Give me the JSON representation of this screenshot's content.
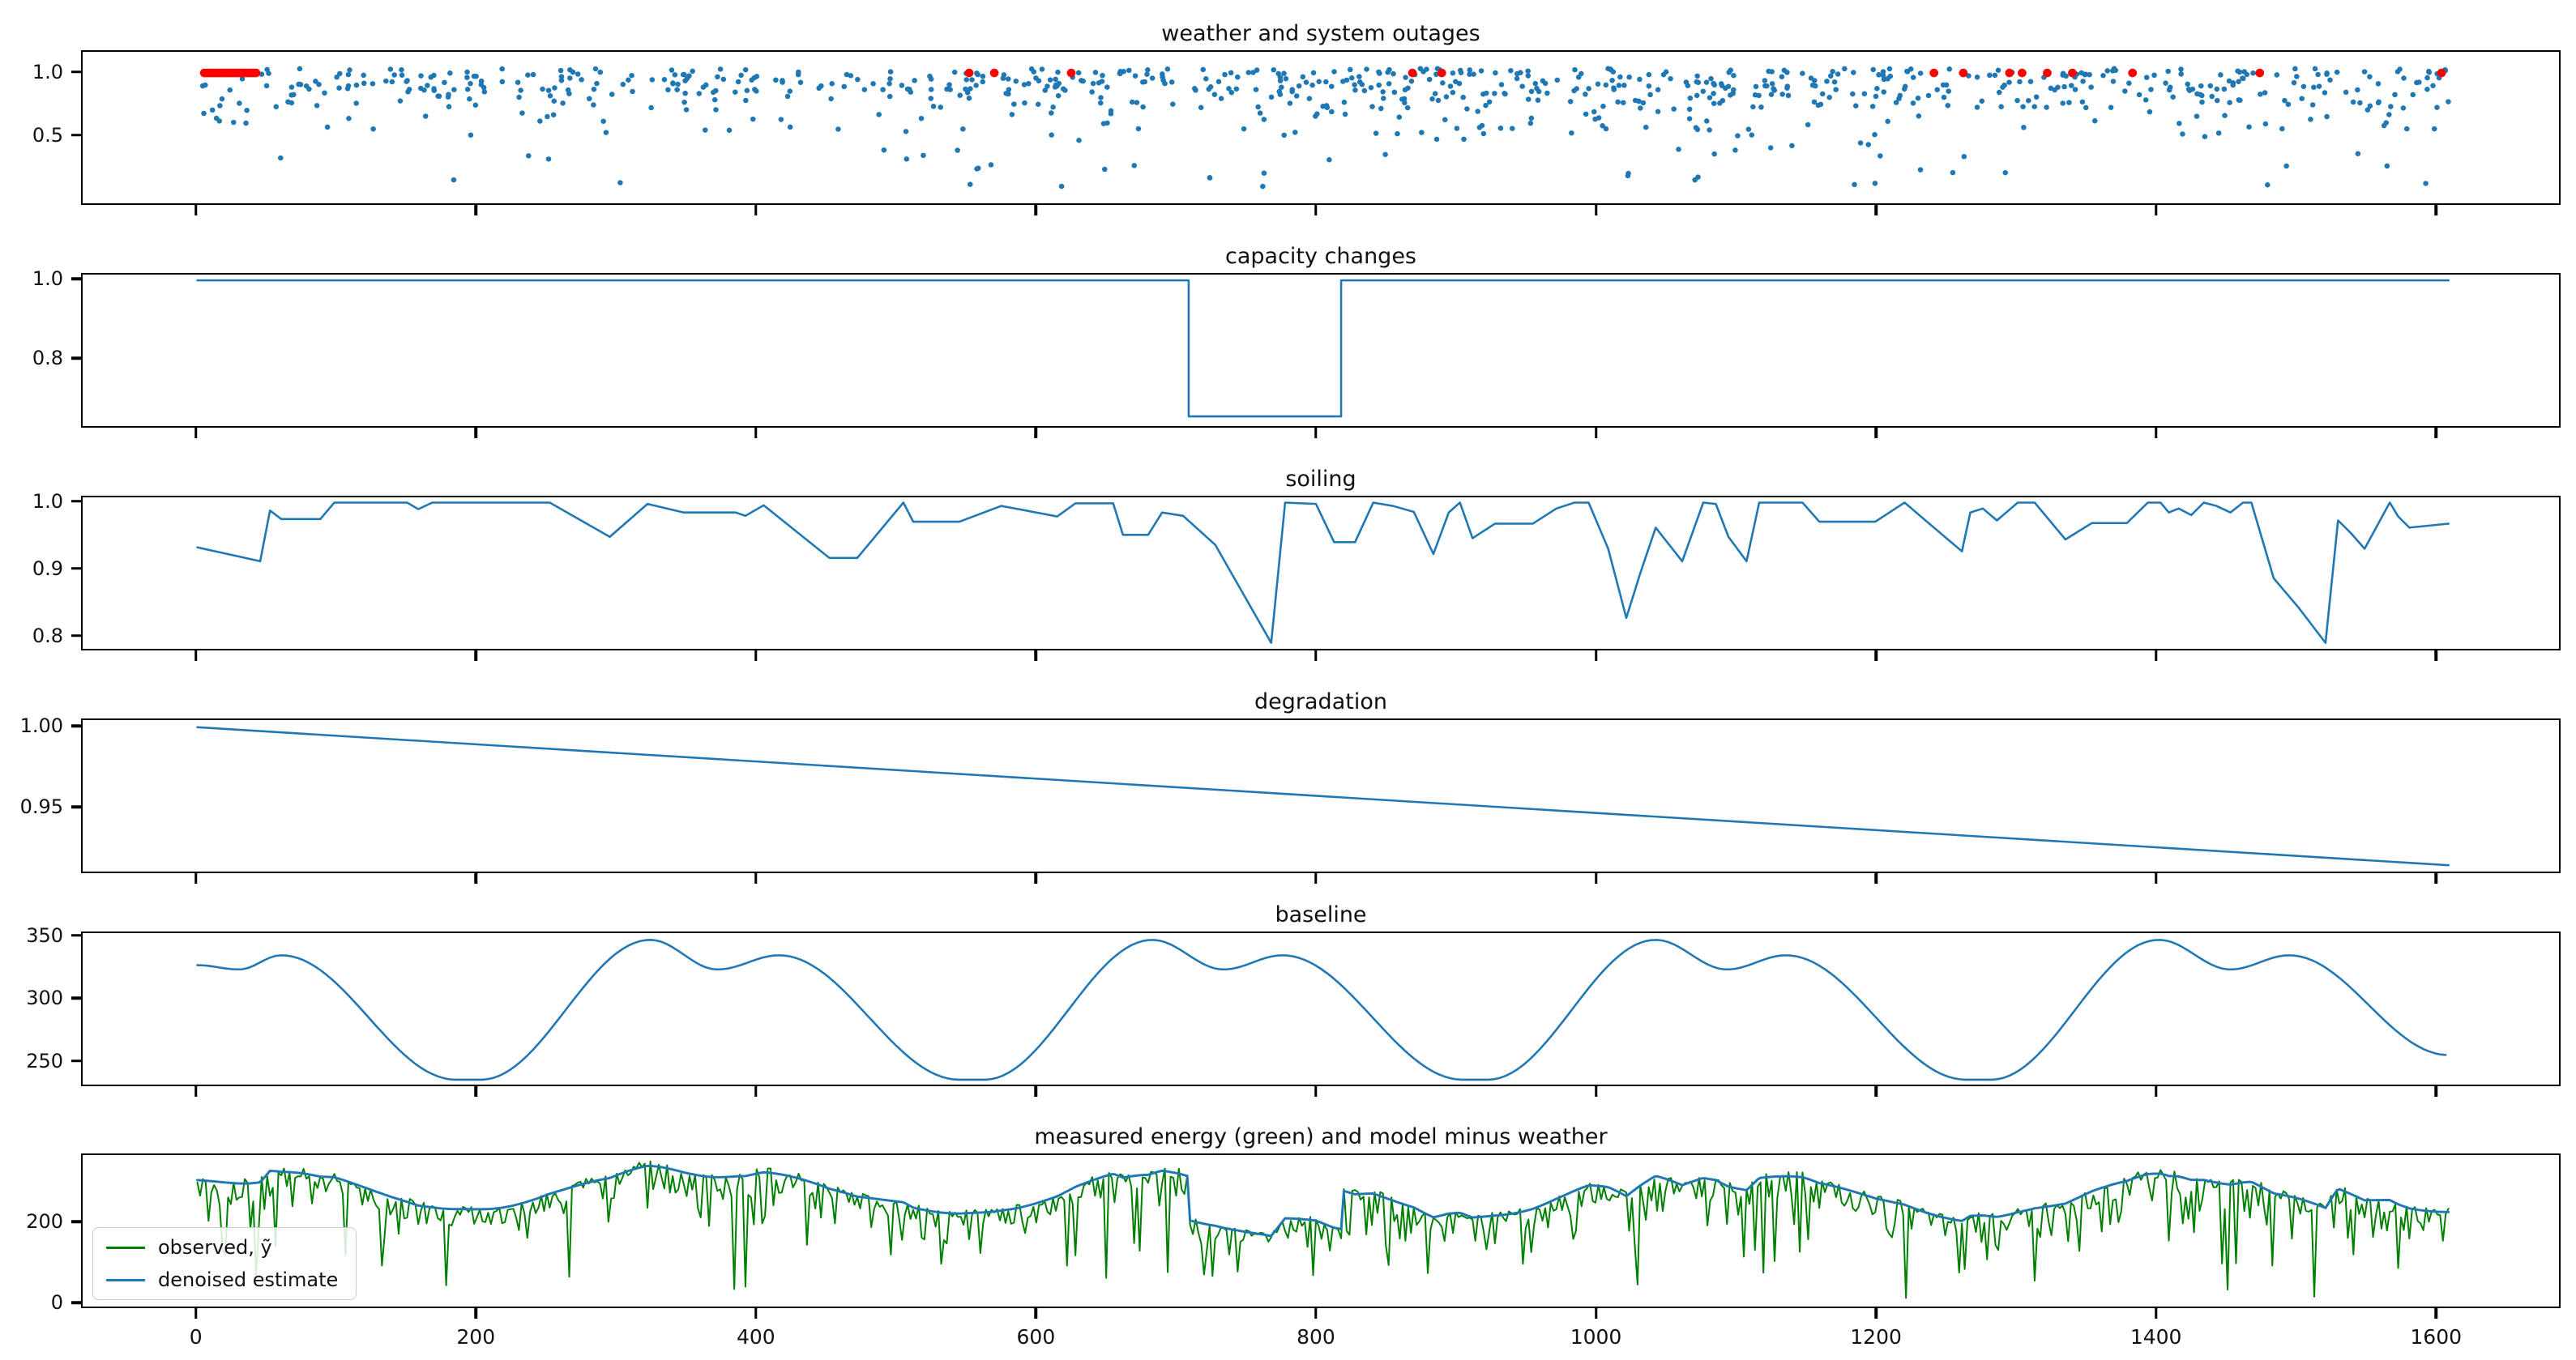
{
  "figure": {
    "background": "#ffffff",
    "colors": {
      "blue": "#1f77b4",
      "green": "#008000",
      "red": "#ff0000",
      "axis": "#000000",
      "legend_border": "#cccccc"
    }
  },
  "axes_shared": {
    "xlim": [
      -82,
      1689
    ],
    "xticks": [
      0,
      200,
      400,
      600,
      800,
      1000,
      1200,
      1400,
      1600
    ],
    "xtick_labels": [
      "0",
      "200",
      "400",
      "600",
      "800",
      "1000",
      "1200",
      "1400",
      "1600"
    ]
  },
  "chart_data": [
    {
      "id": "outages",
      "type": "scatter",
      "title": "weather and system outages",
      "ylim": [
        -0.05,
        1.17
      ],
      "yticks": [
        {
          "v": 1.0,
          "label": "1.0"
        },
        {
          "v": 0.5,
          "label": "0.5"
        }
      ],
      "blue_points_summary": {
        "description": "daily weather factor, ~830 points, dense band 0.75-1.03 with tail down to ~0.08",
        "seed": 11,
        "count_left": 14,
        "left_x_range": [
          0,
          45
        ],
        "count_main": 815,
        "main_x_range": [
          45,
          1610
        ]
      },
      "red_points": {
        "description": "system outages plotted at y=1.0",
        "y": 1.0,
        "cluster": {
          "x_start": 5,
          "x_end": 42,
          "count": 27
        },
        "isolated_x": [
          552,
          570,
          625,
          869,
          890,
          1242,
          1263,
          1296,
          1305,
          1323,
          1341,
          1384,
          1475,
          1605
        ]
      }
    },
    {
      "id": "capacity",
      "type": "line",
      "title": "capacity changes",
      "ylim": [
        0.625,
        1.015
      ],
      "yticks": [
        {
          "v": 1.0,
          "label": "1.0"
        },
        {
          "v": 0.8,
          "label": "0.8"
        }
      ],
      "interp": "linear",
      "points": [
        [
          0,
          1.0
        ],
        [
          709,
          1.0
        ],
        [
          709,
          0.65
        ],
        [
          818,
          0.65
        ],
        [
          818,
          1.0
        ],
        [
          1610,
          1.0
        ]
      ]
    },
    {
      "id": "soiling",
      "type": "line",
      "title": "soiling",
      "ylim": [
        0.778,
        1.008
      ],
      "yticks": [
        {
          "v": 1.0,
          "label": "1.0"
        },
        {
          "v": 0.9,
          "label": "0.9"
        },
        {
          "v": 0.8,
          "label": "0.8"
        }
      ],
      "interp": "linear",
      "points": [
        [
          0,
          0.932
        ],
        [
          45,
          0.911
        ],
        [
          52,
          0.988
        ],
        [
          60,
          0.975
        ],
        [
          88,
          0.975
        ],
        [
          98,
          1.0
        ],
        [
          150,
          1.0
        ],
        [
          158,
          0.99
        ],
        [
          168,
          1.0
        ],
        [
          252,
          1.0
        ],
        [
          295,
          0.948
        ],
        [
          322,
          0.998
        ],
        [
          348,
          0.985
        ],
        [
          385,
          0.985
        ],
        [
          392,
          0.98
        ],
        [
          405,
          0.996
        ],
        [
          452,
          0.916
        ],
        [
          472,
          0.916
        ],
        [
          505,
          1.0
        ],
        [
          512,
          0.971
        ],
        [
          545,
          0.971
        ],
        [
          575,
          0.995
        ],
        [
          615,
          0.979
        ],
        [
          628,
          0.999
        ],
        [
          655,
          0.999
        ],
        [
          662,
          0.951
        ],
        [
          680,
          0.951
        ],
        [
          690,
          0.985
        ],
        [
          705,
          0.98
        ],
        [
          728,
          0.936
        ],
        [
          768,
          0.787
        ],
        [
          778,
          1.0
        ],
        [
          800,
          0.998
        ],
        [
          813,
          0.94
        ],
        [
          828,
          0.94
        ],
        [
          841,
          1.0
        ],
        [
          855,
          0.995
        ],
        [
          870,
          0.986
        ],
        [
          884,
          0.922
        ],
        [
          895,
          0.985
        ],
        [
          903,
          1.0
        ],
        [
          912,
          0.946
        ],
        [
          928,
          0.968
        ],
        [
          955,
          0.968
        ],
        [
          972,
          0.991
        ],
        [
          985,
          1.0
        ],
        [
          995,
          1.0
        ],
        [
          1009,
          0.93
        ],
        [
          1022,
          0.825
        ],
        [
          1032,
          0.893
        ],
        [
          1043,
          0.962
        ],
        [
          1062,
          0.911
        ],
        [
          1077,
          1.0
        ],
        [
          1086,
          0.998
        ],
        [
          1095,
          0.948
        ],
        [
          1108,
          0.911
        ],
        [
          1117,
          1.0
        ],
        [
          1148,
          1.0
        ],
        [
          1160,
          0.971
        ],
        [
          1200,
          0.971
        ],
        [
          1221,
          1.0
        ],
        [
          1237,
          0.971
        ],
        [
          1262,
          0.926
        ],
        [
          1268,
          0.985
        ],
        [
          1277,
          0.991
        ],
        [
          1287,
          0.973
        ],
        [
          1302,
          1.0
        ],
        [
          1314,
          1.0
        ],
        [
          1336,
          0.944
        ],
        [
          1355,
          0.969
        ],
        [
          1380,
          0.969
        ],
        [
          1395,
          1.0
        ],
        [
          1404,
          1.0
        ],
        [
          1410,
          0.985
        ],
        [
          1417,
          0.991
        ],
        [
          1426,
          0.981
        ],
        [
          1435,
          1.0
        ],
        [
          1444,
          0.995
        ],
        [
          1454,
          0.985
        ],
        [
          1463,
          1.0
        ],
        [
          1469,
          1.0
        ],
        [
          1485,
          0.885
        ],
        [
          1503,
          0.84
        ],
        [
          1522,
          0.787
        ],
        [
          1531,
          0.973
        ],
        [
          1540,
          0.954
        ],
        [
          1550,
          0.93
        ],
        [
          1568,
          1.0
        ],
        [
          1574,
          0.979
        ],
        [
          1582,
          0.962
        ],
        [
          1610,
          0.968
        ]
      ]
    },
    {
      "id": "degradation",
      "type": "line",
      "title": "degradation",
      "ylim": [
        0.909,
        1.0045
      ],
      "yticks": [
        {
          "v": 1.0,
          "label": "1.00"
        },
        {
          "v": 0.95,
          "label": "0.95"
        }
      ],
      "interp": "linear",
      "points": [
        [
          0,
          1.0
        ],
        [
          1610,
          0.913
        ]
      ]
    },
    {
      "id": "baseline",
      "type": "line",
      "title": "baseline",
      "ylim": [
        230,
        353
      ],
      "yticks": [
        {
          "v": 350,
          "label": "350"
        },
        {
          "v": 300,
          "label": "300"
        },
        {
          "v": 250,
          "label": "250"
        }
      ],
      "interp": "cosine",
      "points": [
        [
          0,
          327
        ],
        [
          30,
          323.5
        ],
        [
          60,
          335
        ],
        [
          185,
          234
        ],
        [
          203,
          234
        ],
        [
          324,
          347.5
        ],
        [
          372,
          323.5
        ],
        [
          416,
          335
        ],
        [
          545,
          234
        ],
        [
          563,
          234
        ],
        [
          683,
          347.5
        ],
        [
          734,
          323.5
        ],
        [
          776,
          335
        ],
        [
          905,
          234
        ],
        [
          923,
          234
        ],
        [
          1043,
          347.5
        ],
        [
          1094,
          323.5
        ],
        [
          1136,
          335
        ],
        [
          1265,
          234
        ],
        [
          1283,
          234
        ],
        [
          1403,
          347.5
        ],
        [
          1454,
          323.5
        ],
        [
          1496,
          335
        ],
        [
          1610,
          254
        ]
      ]
    },
    {
      "id": "energy",
      "type": "line",
      "title": "measured energy (green) and model minus weather",
      "ylim": [
        -14,
        368
      ],
      "yticks": [
        {
          "v": 200,
          "label": "200"
        },
        {
          "v": 0,
          "label": "0"
        }
      ],
      "x_range": [
        0,
        1610
      ],
      "series": [
        {
          "name": "observed, ỹ",
          "color_key": "green",
          "derivation": "denoised model multiplied by noisy weather factor with frequent deep downward spikes",
          "noise_seed": 99
        },
        {
          "name": "denoised estimate",
          "color_key": "blue",
          "derivation": "baseline × soiling × degradation × capacity"
        }
      ],
      "legend": {
        "position": "lower left"
      }
    }
  ]
}
